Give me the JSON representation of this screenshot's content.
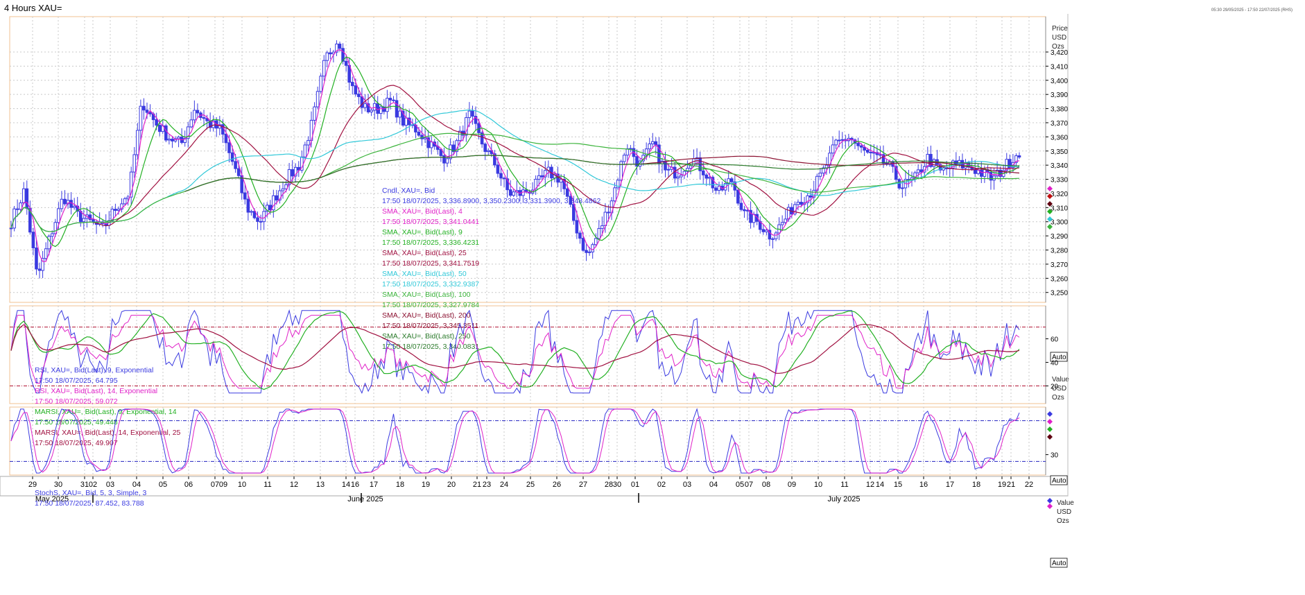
{
  "window": {
    "title": "4 Hours XAU=",
    "stamp": "05:30 29/05/2025 - 17:50 22/07/2025 (RHS)"
  },
  "colors": {
    "candle": "#3a3ae0",
    "sma4": "#e020c8",
    "sma9": "#22b022",
    "sma25": "#a01040",
    "sma50": "#30c8d8",
    "sma100": "#3cb43c",
    "sma200": "#8b1030",
    "sma250": "#2a7a2a",
    "grid": "#c8c8c8",
    "border": "#f0c090",
    "refline_red": "#b01030",
    "refline_blue": "#2020c0"
  },
  "axis_labels": {
    "price_header": [
      "Price",
      "USD",
      "Ozs"
    ],
    "value_header": [
      "Value",
      "USD",
      "Ozs"
    ],
    "auto": "Auto"
  },
  "chart_data": [
    {
      "type": "candlestick",
      "panel": "price",
      "ylim": [
        3243,
        3445
      ],
      "yticks": [
        "3,250",
        "3,260",
        "3,270",
        "3,280",
        "3,290",
        "3,300",
        "3,310",
        "3,320",
        "3,330",
        "3,340",
        "3,350",
        "3,360",
        "3,370",
        "3,380",
        "3,390",
        "3,400",
        "3,410",
        "3,420"
      ],
      "ytick_values": [
        3250,
        3260,
        3270,
        3280,
        3290,
        3300,
        3310,
        3320,
        3330,
        3340,
        3350,
        3360,
        3370,
        3380,
        3390,
        3400,
        3410,
        3420
      ],
      "legend": [
        {
          "text": "Cndl, XAU=, Bid",
          "color": "#3a3ae0"
        },
        {
          "text": "17:50 18/07/2025, 3,336.8900, 3,350.2300, 3,331.3900, 3,348.4862",
          "color": "#3a3ae0"
        },
        {
          "text": "SMA, XAU=, Bid(Last),  4",
          "color": "#e020c8"
        },
        {
          "text": "17:50 18/07/2025, 3,341.0441",
          "color": "#e020c8"
        },
        {
          "text": "SMA, XAU=, Bid(Last),  9",
          "color": "#22b022"
        },
        {
          "text": "17:50 18/07/2025, 3,336.4231",
          "color": "#22b022"
        },
        {
          "text": "SMA, XAU=, Bid(Last),  25",
          "color": "#a01040"
        },
        {
          "text": "17:50 18/07/2025, 3,341.7519",
          "color": "#a01040"
        },
        {
          "text": "SMA, XAU=, Bid(Last),  50",
          "color": "#30c8d8"
        },
        {
          "text": "17:50 18/07/2025, 3,332.9387",
          "color": "#30c8d8"
        },
        {
          "text": "SMA, XAU=, Bid(Last),  100",
          "color": "#3cb43c"
        },
        {
          "text": "17:50 18/07/2025, 3,327.9784",
          "color": "#3cb43c"
        },
        {
          "text": "SMA, XAU=, Bid(Last),  200",
          "color": "#8b1030"
        },
        {
          "text": "17:50 18/07/2025, 3,345.3511",
          "color": "#8b1030"
        },
        {
          "text": "SMA, XAU=, Bid(Last),  250",
          "color": "#2a7a2a"
        },
        {
          "text": "17:50 18/07/2025, 3,340.0831",
          "color": "#2a7a2a"
        }
      ],
      "close_anchors": [
        3300,
        3322,
        3260,
        3290,
        3318,
        3305,
        3300,
        3295,
        3310,
        3320,
        3385,
        3370,
        3360,
        3355,
        3380,
        3370,
        3365,
        3340,
        3310,
        3300,
        3315,
        3330,
        3340,
        3370,
        3415,
        3430,
        3395,
        3380,
        3380,
        3385,
        3370,
        3365,
        3355,
        3345,
        3355,
        3375,
        3355,
        3340,
        3320,
        3320,
        3325,
        3335,
        3330,
        3300,
        3275,
        3295,
        3320,
        3355,
        3340,
        3355,
        3335,
        3335,
        3345,
        3335,
        3320,
        3330,
        3305,
        3300,
        3290,
        3300,
        3315,
        3320,
        3335,
        3355,
        3360,
        3350,
        3345,
        3340,
        3325,
        3330,
        3345,
        3335,
        3340,
        3340,
        3335,
        3330,
        3340,
        3350
      ],
      "marker_colors": [
        "#e020c8",
        "#c01010",
        "#600010",
        "#22b022",
        "#30c8d8",
        "#3cb43c"
      ]
    },
    {
      "type": "line",
      "panel": "rsi",
      "ylim": [
        5,
        88
      ],
      "yticks": [
        "20",
        "40",
        "60"
      ],
      "ytick_values": [
        20,
        40,
        60
      ],
      "reference_lines": [
        20,
        70
      ],
      "legend": [
        {
          "text": "RSI, XAU=, Bid(Last),  9, Exponential",
          "color": "#3a3ae0"
        },
        {
          "text": "17:50 18/07/2025, 64.795",
          "color": "#3a3ae0"
        },
        {
          "text": "RSI, XAU=, Bid(Last),  14, Exponential",
          "color": "#e020c8"
        },
        {
          "text": "17:50 18/07/2025, 59.072",
          "color": "#e020c8"
        },
        {
          "text": "MARSI, XAU=, Bid(Last),  9, Exponential, 14",
          "color": "#22b022"
        },
        {
          "text": "17:50 18/07/2025, 49.448",
          "color": "#22b022"
        },
        {
          "text": "MARSI, XAU=, Bid(Last),  14, Exponential, 25",
          "color": "#a01040"
        },
        {
          "text": "17:50 18/07/2025, 49.907",
          "color": "#a01040"
        }
      ],
      "marker_colors": [
        "#3a3ae0",
        "#e020c8",
        "#22b022",
        "#600010"
      ]
    },
    {
      "type": "line",
      "panel": "stochastic",
      "ylim": [
        0,
        100
      ],
      "yticks": [
        "30"
      ],
      "ytick_values": [
        30
      ],
      "reference_lines": [
        20,
        80
      ],
      "legend": [
        {
          "text": "StochS, XAU=, Bid,  5, 3, Simple, 3",
          "color": "#3a3ae0"
        },
        {
          "text": "17:50 18/07/2025, 87.452, 83.788",
          "color": "#3a3ae0"
        }
      ],
      "marker_colors": [
        "#3a3ae0",
        "#e020c8"
      ]
    }
  ],
  "x_axis": {
    "day_labels": [
      "29",
      "30",
      "31",
      "02",
      "03",
      "04",
      "05",
      "06",
      "07",
      "09",
      "10",
      "11",
      "12",
      "13",
      "14",
      "16",
      "17",
      "18",
      "19",
      "20",
      "21",
      "23",
      "24",
      "25",
      "26",
      "27",
      "28",
      "30",
      "01",
      "02",
      "03",
      "04",
      "05",
      "07",
      "08",
      "09",
      "10",
      "11",
      "12",
      "14",
      "15",
      "16",
      "17",
      "18",
      "19",
      "21",
      "22"
    ],
    "day_positions": [
      47,
      84,
      122,
      134,
      159,
      197,
      235,
      272,
      310,
      322,
      349,
      386,
      424,
      462,
      499,
      512,
      539,
      577,
      614,
      651,
      688,
      702,
      727,
      765,
      803,
      841,
      878,
      890,
      916,
      954,
      991,
      1029,
      1067,
      1080,
      1105,
      1142,
      1180,
      1218,
      1255,
      1269,
      1295,
      1332,
      1370,
      1408,
      1445,
      1458,
      1484
    ],
    "month_labels": [
      "May 2025",
      "June 2025",
      "July 2025"
    ],
    "month_positions": [
      75,
      527,
      1217
    ],
    "month_ticks": [
      134,
      521,
      921
    ]
  }
}
